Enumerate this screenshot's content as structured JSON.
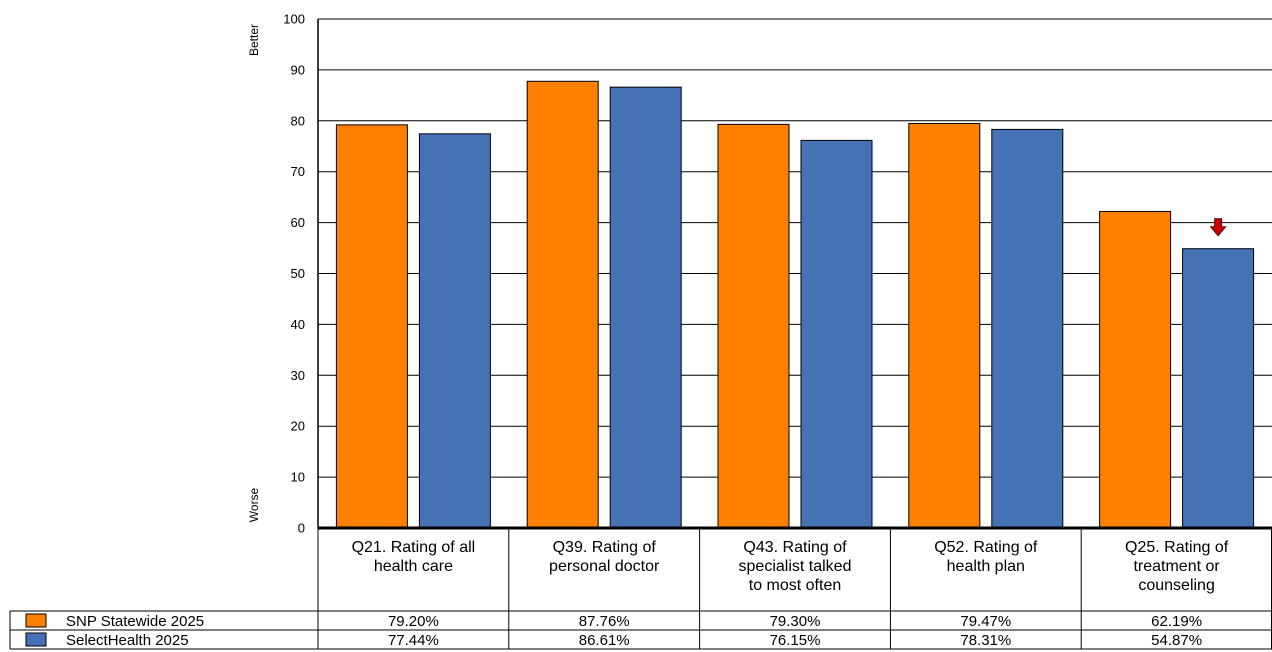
{
  "chart_data": {
    "type": "bar",
    "categories": [
      [
        "Q21. Rating of all",
        "health care"
      ],
      [
        "Q39. Rating of",
        "personal doctor"
      ],
      [
        "Q43. Rating of",
        "specialist talked",
        "to most often"
      ],
      [
        "Q52. Rating of",
        "health plan"
      ],
      [
        "Q25. Rating of",
        "treatment or",
        "counseling"
      ]
    ],
    "series": [
      {
        "name": "SNP Statewide 2025",
        "color": "#ff8000",
        "values": [
          79.2,
          87.76,
          79.3,
          79.47,
          62.19
        ],
        "labels": [
          "79.20%",
          "87.76%",
          "79.30%",
          "79.47%",
          "62.19%"
        ]
      },
      {
        "name": "SelectHealth 2025",
        "color": "#4472b4",
        "values": [
          77.44,
          86.61,
          76.15,
          78.31,
          54.87
        ],
        "labels": [
          "77.44%",
          "86.61%",
          "76.15%",
          "78.31%",
          "54.87%"
        ]
      }
    ],
    "ylim": [
      0,
      100
    ],
    "yticks": [
      "0",
      "10",
      "20",
      "30",
      "40",
      "50",
      "60",
      "70",
      "80",
      "90",
      "100"
    ],
    "y_top_label": "Better",
    "y_bottom_label": "Worse",
    "grid": true,
    "legend": "table-left",
    "significance_markers": [
      {
        "series": 1,
        "category": 4,
        "direction": "down",
        "icon": "down-arrow-icon",
        "color": "#cc0000"
      }
    ]
  }
}
